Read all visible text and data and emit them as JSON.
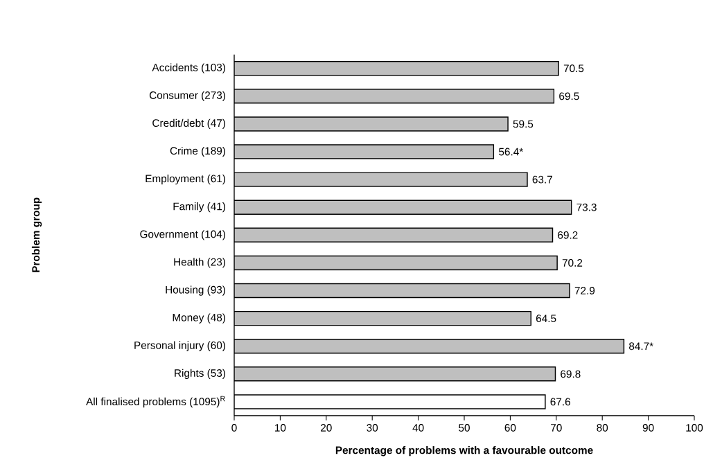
{
  "chart_data": {
    "type": "bar",
    "orientation": "horizontal",
    "xlabel": "Percentage of problems with a favourable outcome",
    "ylabel": "Problem group",
    "categories": [
      "Accidents (103)",
      "Consumer (273)",
      "Credit/debt (47)",
      "Crime (189)",
      "Employment (61)",
      "Family (41)",
      "Government (104)",
      "Health (23)",
      "Housing (93)",
      "Money (48)",
      "Personal injury (60)",
      "Rights (53)",
      "All finalised problems (1095)$^{R}$"
    ],
    "values": [
      70.5,
      69.5,
      59.5,
      56.4,
      63.7,
      73.3,
      69.2,
      70.2,
      72.9,
      64.5,
      84.7,
      69.8,
      67.6
    ],
    "value_labels": [
      "70.5",
      "69.5",
      "59.5",
      "56.4*",
      "63.7",
      "73.3",
      "69.2",
      "70.2",
      "72.9",
      "64.5",
      "84.7*",
      "69.8",
      "67.6"
    ],
    "colors": [
      "#bfbfbf",
      "#bfbfbf",
      "#bfbfbf",
      "#bfbfbf",
      "#bfbfbf",
      "#bfbfbf",
      "#bfbfbf",
      "#bfbfbf",
      "#bfbfbf",
      "#bfbfbf",
      "#bfbfbf",
      "#bfbfbf",
      "#ffffff"
    ],
    "xlim": [
      0,
      100
    ],
    "xticks": [
      0,
      10,
      20,
      30,
      40,
      50,
      60,
      70,
      80,
      90,
      100
    ]
  }
}
